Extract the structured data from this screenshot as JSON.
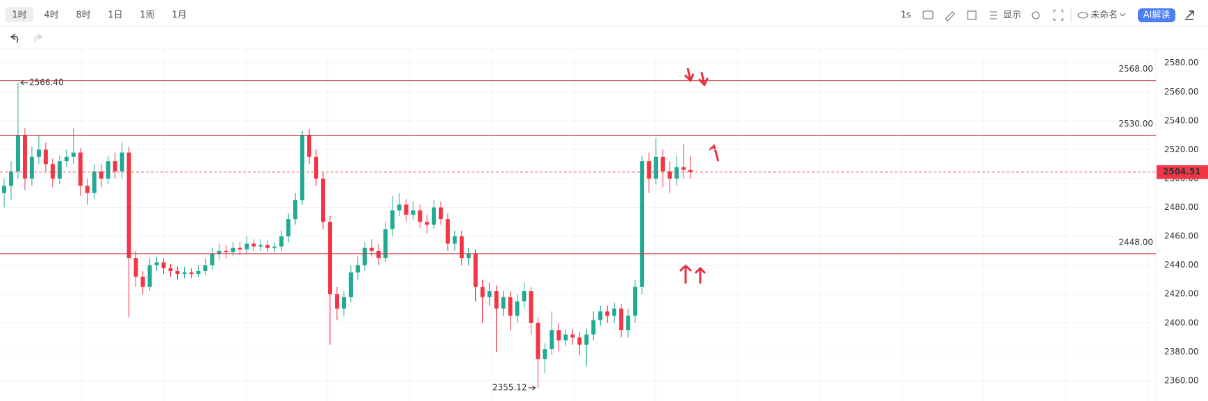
{
  "toolbar": {
    "intervals": [
      "1时",
      "4时",
      "8时",
      "1日",
      "1周",
      "1月"
    ],
    "speed": "1s",
    "display": "显示",
    "layout_name": "未命名",
    "ai": "AI解读"
  },
  "chart_data": {
    "type": "candlestick",
    "up_color": "#22ab94",
    "down_color": "#f23645",
    "ylim": [
      2346,
      2589
    ],
    "yticks": [
      {
        "value": 2360,
        "label": "2360.00"
      },
      {
        "value": 2380,
        "label": "2380.00"
      },
      {
        "value": 2400,
        "label": "2400.00"
      },
      {
        "value": 2420,
        "label": "2420.00"
      },
      {
        "value": 2440,
        "label": "2440.00"
      },
      {
        "value": 2460,
        "label": "2460.00"
      },
      {
        "value": 2480,
        "label": "2480.00"
      },
      {
        "value": 2500,
        "label": "2500.00"
      },
      {
        "value": 2520,
        "label": "2520.00"
      },
      {
        "value": 2540,
        "label": "2540.00"
      },
      {
        "value": 2560,
        "label": "2560.00"
      },
      {
        "value": 2580,
        "label": "2580.00"
      }
    ],
    "grid": true,
    "levels": [
      {
        "value": 2568,
        "label": "2568.00"
      },
      {
        "value": 2530,
        "label": "2530.00"
      },
      {
        "value": 2448,
        "label": "2448.00"
      }
    ],
    "level_color": "#d32f3a",
    "last_price": {
      "value": 2504.51,
      "label": "2504.51"
    },
    "max_label": {
      "value": 2566.4,
      "label": "2566.40"
    },
    "min_label": {
      "value": 2355.12,
      "label": "2355.12"
    },
    "candles": [
      [
        2490,
        2500,
        2480,
        2495
      ],
      [
        2495,
        2512,
        2485,
        2505
      ],
      [
        2505,
        2566.4,
        2500,
        2530
      ],
      [
        2530,
        2535,
        2492,
        2500
      ],
      [
        2500,
        2522,
        2495,
        2515
      ],
      [
        2515,
        2530,
        2510,
        2520
      ],
      [
        2520,
        2525,
        2505,
        2510
      ],
      [
        2510,
        2514,
        2494,
        2500
      ],
      [
        2500,
        2516,
        2496,
        2512
      ],
      [
        2512,
        2520,
        2508,
        2515
      ],
      [
        2515,
        2535,
        2510,
        2518
      ],
      [
        2518,
        2521,
        2488,
        2495
      ],
      [
        2495,
        2500,
        2482,
        2490
      ],
      [
        2490,
        2510,
        2486,
        2505
      ],
      [
        2505,
        2510,
        2494,
        2500
      ],
      [
        2500,
        2516,
        2496,
        2512
      ],
      [
        2512,
        2518,
        2500,
        2505
      ],
      [
        2505,
        2525,
        2500,
        2518
      ],
      [
        2518,
        2522,
        2404,
        2445
      ],
      [
        2445,
        2450,
        2425,
        2432
      ],
      [
        2432,
        2436,
        2420,
        2425
      ],
      [
        2425,
        2445,
        2422,
        2440
      ],
      [
        2440,
        2446,
        2436,
        2442
      ],
      [
        2442,
        2445,
        2434,
        2438
      ],
      [
        2438,
        2441,
        2432,
        2436
      ],
      [
        2436,
        2439,
        2430,
        2434
      ],
      [
        2434,
        2439,
        2431,
        2435
      ],
      [
        2435,
        2438,
        2431,
        2434
      ],
      [
        2434,
        2440,
        2432,
        2436
      ],
      [
        2436,
        2445,
        2433,
        2440
      ],
      [
        2440,
        2452,
        2437,
        2448
      ],
      [
        2448,
        2455,
        2444,
        2450
      ],
      [
        2450,
        2454,
        2445,
        2449
      ],
      [
        2449,
        2456,
        2446,
        2452
      ],
      [
        2452,
        2456,
        2447,
        2451
      ],
      [
        2451,
        2460,
        2448,
        2455
      ],
      [
        2455,
        2458,
        2450,
        2453
      ],
      [
        2453,
        2458,
        2450,
        2454
      ],
      [
        2454,
        2457,
        2449,
        2452
      ],
      [
        2452,
        2456,
        2449,
        2453
      ],
      [
        2453,
        2464,
        2450,
        2460
      ],
      [
        2460,
        2476,
        2456,
        2472
      ],
      [
        2472,
        2490,
        2468,
        2485
      ],
      [
        2485,
        2533,
        2482,
        2530
      ],
      [
        2530,
        2534,
        2510,
        2515
      ],
      [
        2515,
        2520,
        2495,
        2500
      ],
      [
        2500,
        2504,
        2465,
        2470
      ],
      [
        2470,
        2474,
        2385,
        2420
      ],
      [
        2420,
        2425,
        2402,
        2410
      ],
      [
        2410,
        2422,
        2405,
        2418
      ],
      [
        2418,
        2440,
        2414,
        2435
      ],
      [
        2435,
        2446,
        2430,
        2440
      ],
      [
        2440,
        2456,
        2436,
        2452
      ],
      [
        2452,
        2458,
        2446,
        2450
      ],
      [
        2450,
        2455,
        2440,
        2445
      ],
      [
        2445,
        2470,
        2442,
        2465
      ],
      [
        2465,
        2488,
        2460,
        2478
      ],
      [
        2478,
        2490,
        2474,
        2482
      ],
      [
        2482,
        2486,
        2470,
        2475
      ],
      [
        2475,
        2484,
        2471,
        2478
      ],
      [
        2478,
        2482,
        2466,
        2470
      ],
      [
        2470,
        2475,
        2462,
        2468
      ],
      [
        2468,
        2485,
        2465,
        2480
      ],
      [
        2480,
        2484,
        2468,
        2472
      ],
      [
        2472,
        2476,
        2450,
        2455
      ],
      [
        2455,
        2464,
        2450,
        2460
      ],
      [
        2460,
        2464,
        2440,
        2445
      ],
      [
        2445,
        2452,
        2440,
        2448
      ],
      [
        2448,
        2451,
        2415,
        2425
      ],
      [
        2425,
        2430,
        2400,
        2418
      ],
      [
        2418,
        2428,
        2412,
        2422
      ],
      [
        2422,
        2426,
        2380,
        2410
      ],
      [
        2410,
        2422,
        2405,
        2418
      ],
      [
        2418,
        2422,
        2395,
        2405
      ],
      [
        2405,
        2420,
        2400,
        2415
      ],
      [
        2415,
        2428,
        2410,
        2422
      ],
      [
        2422,
        2425,
        2392,
        2400
      ],
      [
        2400,
        2404,
        2355.12,
        2375
      ],
      [
        2375,
        2386,
        2365,
        2382
      ],
      [
        2382,
        2408,
        2378,
        2395
      ],
      [
        2395,
        2400,
        2380,
        2388
      ],
      [
        2388,
        2396,
        2384,
        2392
      ],
      [
        2392,
        2396,
        2385,
        2390
      ],
      [
        2390,
        2394,
        2378,
        2385
      ],
      [
        2385,
        2396,
        2370,
        2392
      ],
      [
        2392,
        2408,
        2388,
        2402
      ],
      [
        2402,
        2412,
        2398,
        2408
      ],
      [
        2408,
        2412,
        2400,
        2405
      ],
      [
        2405,
        2414,
        2400,
        2410
      ],
      [
        2410,
        2413,
        2390,
        2395
      ],
      [
        2395,
        2410,
        2390,
        2405
      ],
      [
        2405,
        2430,
        2400,
        2425
      ],
      [
        2425,
        2516,
        2420,
        2512
      ],
      [
        2512,
        2518,
        2490,
        2500
      ],
      [
        2500,
        2528,
        2496,
        2515
      ],
      [
        2515,
        2520,
        2494,
        2505
      ],
      [
        2505,
        2512,
        2490,
        2500
      ],
      [
        2500,
        2516,
        2495,
        2508
      ],
      [
        2508,
        2524,
        2500,
        2506
      ],
      [
        2506,
        2516,
        2500,
        2504.51
      ]
    ]
  }
}
